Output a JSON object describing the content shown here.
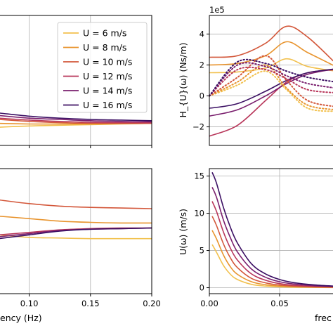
{
  "colors": {
    "6": "#f2c14e",
    "8": "#e8942e",
    "10": "#d3573a",
    "12": "#b8365a",
    "14": "#7a1f6e",
    "16": "#3b0f63",
    "grid": "#b0b0b0",
    "axes": "#000000"
  },
  "chart_data": [
    {
      "id": "top-left",
      "type": "line",
      "title": "",
      "xlabel": "",
      "ylabel": "",
      "xlim": [
        0.075,
        0.2
      ],
      "ylim": [
        0,
        1
      ],
      "xticks": [
        0.1,
        0.15,
        0.2
      ],
      "yticks": [],
      "grid": true,
      "legend": {
        "placement": "top-right",
        "entries": [
          "U =  6 m/s",
          "U =  8 m/s",
          "U = 10 m/s",
          "U = 12 m/s",
          "U = 14 m/s",
          "U = 16 m/s"
        ]
      },
      "series": [
        {
          "x": [
            0.075,
            0.1,
            0.125,
            0.15,
            0.175,
            0.2
          ],
          "y": [
            0.14,
            0.15,
            0.155,
            0.16,
            0.165,
            0.17
          ]
        },
        {
          "x": [
            0.075,
            0.1,
            0.125,
            0.15,
            0.175,
            0.2
          ],
          "y": [
            0.17,
            0.165,
            0.165,
            0.165,
            0.167,
            0.17
          ]
        },
        {
          "x": [
            0.075,
            0.1,
            0.125,
            0.15,
            0.175,
            0.2
          ],
          "y": [
            0.2,
            0.185,
            0.175,
            0.17,
            0.17,
            0.17
          ]
        },
        {
          "x": [
            0.075,
            0.1,
            0.125,
            0.15,
            0.175,
            0.2
          ],
          "y": [
            0.21,
            0.195,
            0.185,
            0.178,
            0.175,
            0.174
          ]
        },
        {
          "x": [
            0.075,
            0.1,
            0.125,
            0.15,
            0.175,
            0.2
          ],
          "y": [
            0.23,
            0.21,
            0.2,
            0.19,
            0.185,
            0.182
          ]
        },
        {
          "x": [
            0.075,
            0.1,
            0.125,
            0.15,
            0.175,
            0.2
          ],
          "y": [
            0.25,
            0.225,
            0.21,
            0.2,
            0.195,
            0.19
          ]
        }
      ]
    },
    {
      "id": "top-right",
      "type": "line",
      "title": "",
      "xlabel": "",
      "ylabel": "H_{U}(ω) (Ns/m)",
      "offset_text": "1e5",
      "xlim": [
        0,
        0.09
      ],
      "ylim": [
        -3.2,
        5.2
      ],
      "xticks": [
        0.05
      ],
      "yticks": [
        -2,
        0,
        2,
        4
      ],
      "ytick_labels": [
        "−2",
        "0",
        "2",
        "4"
      ],
      "grid": true,
      "series": [
        {
          "style": "solid",
          "x": [
            0,
            0.02,
            0.04,
            0.055,
            0.07,
            0.09
          ],
          "y": [
            1.5,
            1.55,
            1.8,
            2.4,
            1.9,
            1.6
          ]
        },
        {
          "style": "solid",
          "x": [
            0,
            0.02,
            0.04,
            0.055,
            0.07,
            0.09
          ],
          "y": [
            2.0,
            2.1,
            2.6,
            3.5,
            2.8,
            1.9
          ]
        },
        {
          "style": "solid",
          "x": [
            0,
            0.02,
            0.04,
            0.055,
            0.07,
            0.09
          ],
          "y": [
            2.5,
            2.6,
            3.4,
            4.5,
            3.8,
            2.1
          ]
        },
        {
          "style": "solid",
          "x": [
            0,
            0.02,
            0.04,
            0.055,
            0.07,
            0.09
          ],
          "y": [
            -2.6,
            -1.9,
            -0.3,
            0.9,
            1.5,
            1.7
          ]
        },
        {
          "style": "solid",
          "x": [
            0,
            0.02,
            0.04,
            0.055,
            0.07,
            0.09
          ],
          "y": [
            -1.3,
            -0.9,
            0.0,
            0.8,
            1.4,
            1.75
          ]
        },
        {
          "style": "solid",
          "x": [
            0,
            0.02,
            0.04,
            0.055,
            0.07,
            0.09
          ],
          "y": [
            -0.8,
            -0.5,
            0.3,
            1.0,
            1.5,
            1.75
          ]
        },
        {
          "style": "dotted",
          "x": [
            0,
            0.02,
            0.04,
            0.055,
            0.07,
            0.09
          ],
          "y": [
            0.0,
            0.7,
            1.6,
            0.4,
            -0.8,
            -1.0
          ]
        },
        {
          "style": "dotted",
          "x": [
            0,
            0.02,
            0.04,
            0.055,
            0.07,
            0.09
          ],
          "y": [
            0.0,
            0.9,
            2.0,
            0.5,
            -0.6,
            -0.9
          ]
        },
        {
          "style": "dotted",
          "x": [
            0,
            0.02,
            0.04,
            0.055,
            0.07,
            0.09
          ],
          "y": [
            0.0,
            1.2,
            2.6,
            1.0,
            -0.3,
            -0.7
          ]
        },
        {
          "style": "dotted",
          "x": [
            0,
            0.02,
            0.04,
            0.055,
            0.07,
            0.09
          ],
          "y": [
            0.0,
            1.7,
            1.7,
            1.1,
            0.4,
            0.2
          ]
        },
        {
          "style": "dotted",
          "x": [
            0,
            0.02,
            0.04,
            0.055,
            0.07,
            0.09
          ],
          "y": [
            0.0,
            2.0,
            1.9,
            1.3,
            0.8,
            0.5
          ]
        },
        {
          "style": "dotted",
          "x": [
            0,
            0.02,
            0.04,
            0.055,
            0.07,
            0.09
          ],
          "y": [
            0.0,
            2.2,
            2.1,
            1.6,
            1.2,
            0.9
          ]
        }
      ]
    },
    {
      "id": "bottom-left",
      "type": "line",
      "title": "",
      "xlabel": "frequency (Hz)",
      "xlabel_visible": "ency (Hz)",
      "ylabel": "",
      "xlim": [
        0.075,
        0.2
      ],
      "ylim": [
        0,
        1
      ],
      "xticks": [
        0.1,
        0.15,
        0.2
      ],
      "xtick_labels": [
        "0.10",
        "0.15",
        "0.20"
      ],
      "yticks": [],
      "grid": true,
      "series": [
        {
          "x": [
            0.075,
            0.1,
            0.125,
            0.15,
            0.175,
            0.2
          ],
          "y": [
            0.47,
            0.45,
            0.445,
            0.44,
            0.44,
            0.44
          ]
        },
        {
          "x": [
            0.075,
            0.1,
            0.125,
            0.15,
            0.175,
            0.2
          ],
          "y": [
            0.62,
            0.6,
            0.58,
            0.57,
            0.565,
            0.565
          ]
        },
        {
          "x": [
            0.075,
            0.1,
            0.125,
            0.15,
            0.175,
            0.2
          ],
          "y": [
            0.75,
            0.72,
            0.7,
            0.69,
            0.685,
            0.68
          ]
        },
        {
          "x": [
            0.075,
            0.1,
            0.125,
            0.15,
            0.175,
            0.2
          ],
          "y": [
            0.47,
            0.49,
            0.51,
            0.52,
            0.525,
            0.525
          ]
        },
        {
          "x": [
            0.075,
            0.1,
            0.125,
            0.15,
            0.175,
            0.2
          ],
          "y": [
            0.455,
            0.48,
            0.505,
            0.515,
            0.52,
            0.525
          ]
        },
        {
          "x": [
            0.075,
            0.1,
            0.125,
            0.15,
            0.175,
            0.2
          ],
          "y": [
            0.44,
            0.47,
            0.5,
            0.515,
            0.52,
            0.525
          ]
        }
      ]
    },
    {
      "id": "bottom-right",
      "type": "line",
      "title": "",
      "xlabel": "frequency (Hz)",
      "xlabel_visible": "frec",
      "ylabel": "U(ω) (m/s)",
      "xlim": [
        0,
        0.09
      ],
      "ylim": [
        -0.8,
        16
      ],
      "xticks": [
        0,
        0.05
      ],
      "xtick_labels": [
        "0.00",
        "0.05"
      ],
      "yticks": [
        0,
        5,
        10,
        15
      ],
      "grid": true,
      "series": [
        {
          "x": [
            0.002,
            0.005,
            0.01,
            0.015,
            0.02,
            0.03,
            0.04,
            0.05,
            0.06,
            0.075,
            0.09
          ],
          "y": [
            5.8,
            4.8,
            3.0,
            1.8,
            1.1,
            0.45,
            0.22,
            0.12,
            0.07,
            0.04,
            0.02
          ]
        },
        {
          "x": [
            0.002,
            0.005,
            0.01,
            0.015,
            0.02,
            0.03,
            0.04,
            0.05,
            0.06,
            0.075,
            0.09
          ],
          "y": [
            7.7,
            6.6,
            4.4,
            2.8,
            1.8,
            0.8,
            0.4,
            0.22,
            0.13,
            0.07,
            0.04
          ]
        },
        {
          "x": [
            0.002,
            0.005,
            0.01,
            0.015,
            0.02,
            0.03,
            0.04,
            0.05,
            0.06,
            0.075,
            0.09
          ],
          "y": [
            9.6,
            8.4,
            5.9,
            4.0,
            2.7,
            1.25,
            0.65,
            0.36,
            0.22,
            0.12,
            0.07
          ]
        },
        {
          "x": [
            0.002,
            0.005,
            0.01,
            0.015,
            0.02,
            0.03,
            0.04,
            0.05,
            0.06,
            0.075,
            0.09
          ],
          "y": [
            11.6,
            10.3,
            7.5,
            5.3,
            3.7,
            1.85,
            1.0,
            0.55,
            0.33,
            0.18,
            0.1
          ]
        },
        {
          "x": [
            0.002,
            0.005,
            0.01,
            0.015,
            0.02,
            0.03,
            0.04,
            0.05,
            0.06,
            0.075,
            0.09
          ],
          "y": [
            13.5,
            12.2,
            9.1,
            6.7,
            4.8,
            2.5,
            1.4,
            0.8,
            0.5,
            0.27,
            0.15
          ]
        },
        {
          "x": [
            0.002,
            0.005,
            0.01,
            0.015,
            0.02,
            0.03,
            0.04,
            0.05,
            0.06,
            0.075,
            0.09
          ],
          "y": [
            15.5,
            14.1,
            10.8,
            8.1,
            6.0,
            3.2,
            1.85,
            1.1,
            0.68,
            0.37,
            0.2
          ]
        }
      ]
    }
  ]
}
